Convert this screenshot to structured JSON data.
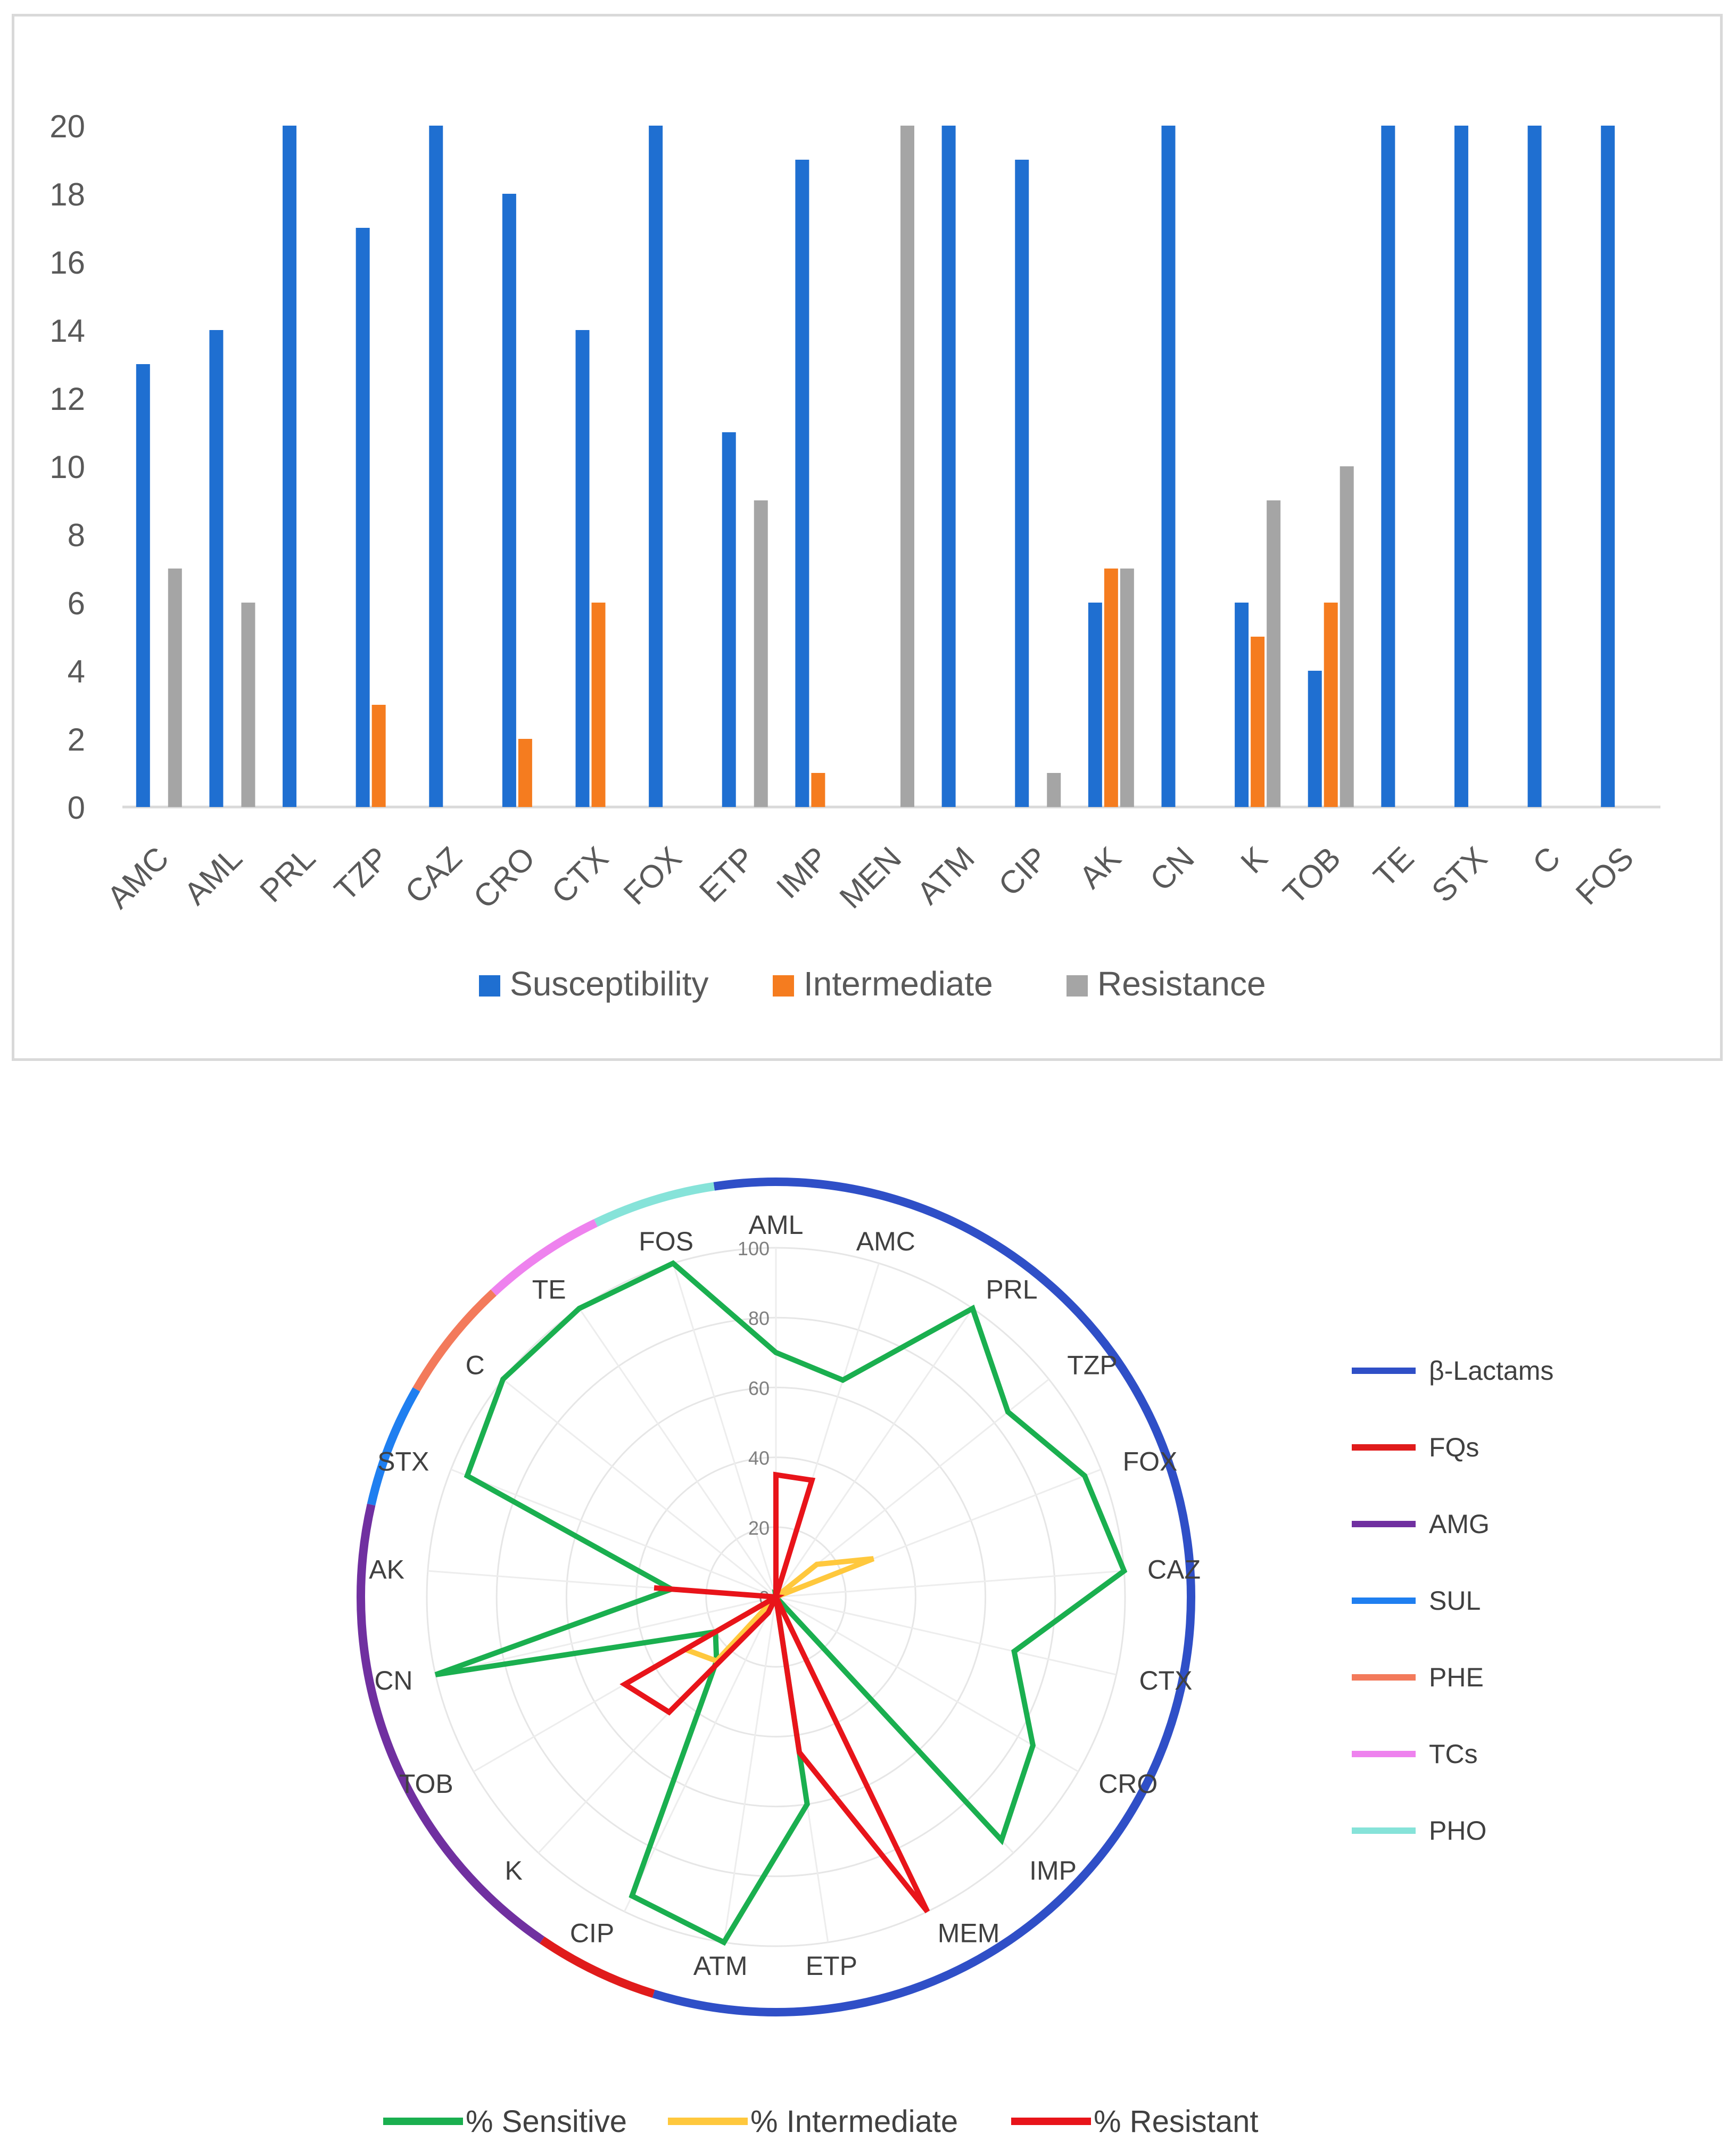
{
  "chart_data": [
    {
      "type": "bar",
      "title": "",
      "xlabel": "",
      "ylabel": "",
      "ylim": [
        0,
        20
      ],
      "yticks": [
        0,
        2,
        4,
        6,
        8,
        10,
        12,
        14,
        16,
        18,
        20
      ],
      "categories": [
        "AMC",
        "AML",
        "PRL",
        "TZP",
        "CAZ",
        "CRO",
        "CTX",
        "FOX",
        "ETP",
        "IMP",
        "MEN",
        "ATM",
        "CIP",
        "AK",
        "CN",
        "K",
        "TOB",
        "TE",
        "STX",
        "C",
        "FOS"
      ],
      "series": [
        {
          "name": "Susceptibility",
          "color": "#1f6fd1",
          "values": [
            13,
            14,
            20,
            17,
            20,
            18,
            14,
            20,
            11,
            19,
            0,
            20,
            19,
            6,
            20,
            6,
            4,
            20,
            20,
            20,
            20
          ]
        },
        {
          "name": "Intermediate",
          "color": "#f57c1f",
          "values": [
            0,
            0,
            0,
            3,
            0,
            2,
            6,
            0,
            0,
            1,
            0,
            0,
            0,
            7,
            0,
            5,
            6,
            0,
            0,
            0,
            0
          ]
        },
        {
          "name": "Resistance",
          "color": "#a5a5a5",
          "values": [
            7,
            6,
            0,
            0,
            0,
            0,
            0,
            0,
            9,
            0,
            20,
            0,
            1,
            7,
            0,
            9,
            10,
            0,
            0,
            0,
            0
          ]
        }
      ],
      "legend_position": "bottom"
    },
    {
      "type": "radar",
      "title": "",
      "rlim": [
        0,
        100
      ],
      "rticks": [
        0,
        20,
        40,
        60,
        80,
        100
      ],
      "axes": [
        "AML",
        "AMC",
        "PRL",
        "TZP",
        "FOX",
        "CAZ",
        "CTX",
        "CRO",
        "IMP",
        "MEM",
        "ETP",
        "ATM",
        "CIP",
        "K",
        "TOB",
        "CN",
        "AK",
        "STX",
        "C",
        "TE",
        "FOS"
      ],
      "series": [
        {
          "name": "% Sensitive",
          "color": "#1aaf4f",
          "values": [
            70,
            65,
            100,
            85,
            95,
            100,
            70,
            85,
            95,
            0,
            60,
            100,
            95,
            25,
            20,
            100,
            30,
            95,
            100,
            100,
            100
          ]
        },
        {
          "name": "% Intermediate",
          "color": "#ffc83d",
          "values": [
            0,
            0,
            0,
            15,
            30,
            0,
            0,
            0,
            0,
            0,
            0,
            0,
            0,
            25,
            30,
            0,
            0,
            0,
            0,
            0,
            0
          ]
        },
        {
          "name": "% Resistant",
          "color": "#e8141a",
          "values": [
            35,
            35,
            0,
            0,
            0,
            0,
            0,
            0,
            0,
            100,
            45,
            0,
            5,
            45,
            50,
            0,
            35,
            0,
            0,
            0,
            0
          ]
        }
      ],
      "groups": [
        {
          "name": "β-Lactams",
          "color": "#2f4fc7",
          "start": 0,
          "end": 11
        },
        {
          "name": "FQs",
          "color": "#e01b1b",
          "start": 12,
          "end": 12
        },
        {
          "name": "AMG",
          "color": "#7030a0",
          "start": 13,
          "end": 16
        },
        {
          "name": "SUL",
          "color": "#1f7ff0",
          "start": 17,
          "end": 17
        },
        {
          "name": "PHE",
          "color": "#f37a5b",
          "start": 18,
          "end": 18
        },
        {
          "name": "TCs",
          "color": "#ee82ee",
          "start": 19,
          "end": 19
        },
        {
          "name": "PHO",
          "color": "#86e3d9",
          "start": 20,
          "end": 20
        }
      ],
      "legend_position": "bottom"
    }
  ]
}
